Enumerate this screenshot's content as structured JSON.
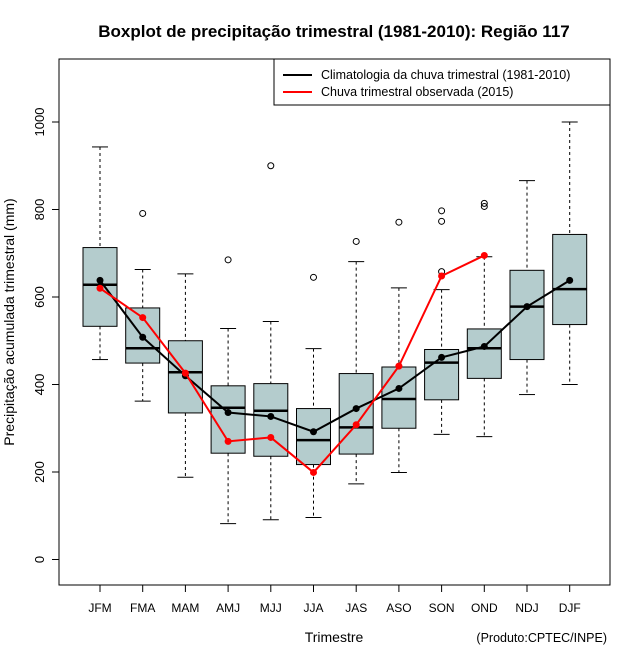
{
  "chart_data": {
    "type": "boxplot",
    "title": "Boxplot de precipitação trimestral (1981-2010): Região 117",
    "xlabel": "Trimestre",
    "ylabel": "Precipitação acumulada trimestral (mm)",
    "ylim": [
      -60,
      1140
    ],
    "yticks": [
      0,
      200,
      400,
      600,
      800,
      1000
    ],
    "grid": false,
    "legend_position": "top-right",
    "credit": "(Produto:CPTEC/INPE)",
    "categories": [
      "JFM",
      "FMA",
      "MAM",
      "AMJ",
      "MJJ",
      "JJA",
      "JAS",
      "ASO",
      "SON",
      "OND",
      "NDJ",
      "DJF"
    ],
    "boxes": [
      {
        "whisker_low": 457,
        "q1": 533,
        "median": 628,
        "q3": 713,
        "whisker_high": 943,
        "outliers": []
      },
      {
        "whisker_low": 362,
        "q1": 449,
        "median": 483,
        "q3": 575,
        "whisker_high": 663,
        "outliers": [
          791
        ]
      },
      {
        "whisker_low": 188,
        "q1": 335,
        "median": 428,
        "q3": 500,
        "whisker_high": 653,
        "outliers": []
      },
      {
        "whisker_low": 82,
        "q1": 243,
        "median": 347,
        "q3": 397,
        "whisker_high": 528,
        "outliers": [
          685
        ]
      },
      {
        "whisker_low": 91,
        "q1": 236,
        "median": 340,
        "q3": 402,
        "whisker_high": 544,
        "outliers": [
          900
        ]
      },
      {
        "whisker_low": 96,
        "q1": 217,
        "median": 273,
        "q3": 345,
        "whisker_high": 482,
        "outliers": [
          645
        ]
      },
      {
        "whisker_low": 173,
        "q1": 241,
        "median": 302,
        "q3": 425,
        "whisker_high": 681,
        "outliers": [
          727
        ]
      },
      {
        "whisker_low": 199,
        "q1": 300,
        "median": 367,
        "q3": 440,
        "whisker_high": 621,
        "outliers": [
          771
        ]
      },
      {
        "whisker_low": 286,
        "q1": 365,
        "median": 450,
        "q3": 480,
        "whisker_high": 617,
        "outliers": [
          658,
          773,
          797
        ]
      },
      {
        "whisker_low": 281,
        "q1": 414,
        "median": 483,
        "q3": 527,
        "whisker_high": 692,
        "outliers": [
          807,
          814
        ]
      },
      {
        "whisker_low": 377,
        "q1": 457,
        "median": 578,
        "q3": 661,
        "whisker_high": 866,
        "outliers": []
      },
      {
        "whisker_low": 400,
        "q1": 537,
        "median": 618,
        "q3": 743,
        "whisker_high": 1000,
        "outliers": []
      }
    ],
    "series": [
      {
        "name": "Climatologia da chuva trimestral (1981-2010)",
        "color": "#000000",
        "values": [
          638,
          508,
          420,
          336,
          327,
          292,
          345,
          391,
          462,
          487,
          578,
          638
        ]
      },
      {
        "name": "Chuva trimestral observada (2015)",
        "color": "#ff0000",
        "values": [
          620,
          553,
          426,
          270,
          279,
          199,
          308,
          442,
          648,
          695,
          null,
          null
        ]
      }
    ],
    "box_color": "#b4cccd"
  }
}
